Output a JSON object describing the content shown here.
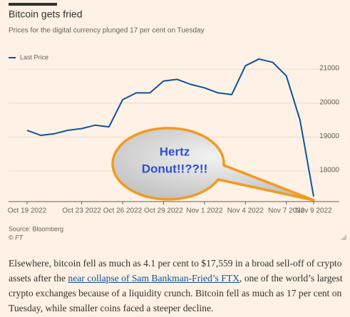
{
  "chart_data": {
    "type": "line",
    "title": "Bitcoin gets fried",
    "subtitle": "Prices for the digital currency plunged 17 per cent on Tuesday",
    "x": [
      "2022-10-19",
      "2022-10-20",
      "2022-10-21",
      "2022-10-22",
      "2022-10-23",
      "2022-10-24",
      "2022-10-25",
      "2022-10-26",
      "2022-10-27",
      "2022-10-28",
      "2022-10-29",
      "2022-10-30",
      "2022-10-31",
      "2022-11-01",
      "2022-11-02",
      "2022-11-03",
      "2022-11-04",
      "2022-11-05",
      "2022-11-06",
      "2022-11-07",
      "2022-11-08",
      "2022-11-09"
    ],
    "series": [
      {
        "name": "Last Price",
        "color": "#0f5499",
        "values": [
          19200,
          19050,
          19100,
          19200,
          19250,
          19350,
          19300,
          20100,
          20300,
          20300,
          20650,
          20700,
          20550,
          20450,
          20300,
          20250,
          21100,
          21300,
          21200,
          20800,
          19500,
          17250
        ]
      }
    ],
    "xlim": [
      "2022-10-19",
      "2022-11-09"
    ],
    "xticks": [
      {
        "value": "2022-10-19",
        "label": "Oct 19 2022"
      },
      {
        "value": "2022-10-23",
        "label": "Oct 23 2022"
      },
      {
        "value": "2022-10-26",
        "label": "Oct 26 2022"
      },
      {
        "value": "2022-10-29",
        "label": "Oct 29 2022"
      },
      {
        "value": "2022-11-01",
        "label": "Nov 1 2022"
      },
      {
        "value": "2022-11-04",
        "label": "Nov 4 2022"
      },
      {
        "value": "2022-11-07",
        "label": "Nov 7 2022"
      },
      {
        "value": "2022-11-09",
        "label": "Nov 9 2022"
      }
    ],
    "ylim": [
      17100,
      21400
    ],
    "yticks": [
      18000,
      19000,
      20000,
      21000
    ],
    "annotation": [
      "Hertz",
      "Donut!!??!!"
    ],
    "source": "Source: Bloomberg",
    "credit": "© FT"
  },
  "article": {
    "before": "Elsewhere, bitcoin fell as much as 4.1 per cent to $17,559 in a broad sell-off of crypto assets after the ",
    "link": "near collapse of Sam Bankman-Fried’s FTX",
    "after": ", one of the world’s largest crypto exchanges because of a liquidity crunch. Bitcoin fell as much as 17 per cent on Tuesday, while smaller coins faced a steeper decline."
  }
}
